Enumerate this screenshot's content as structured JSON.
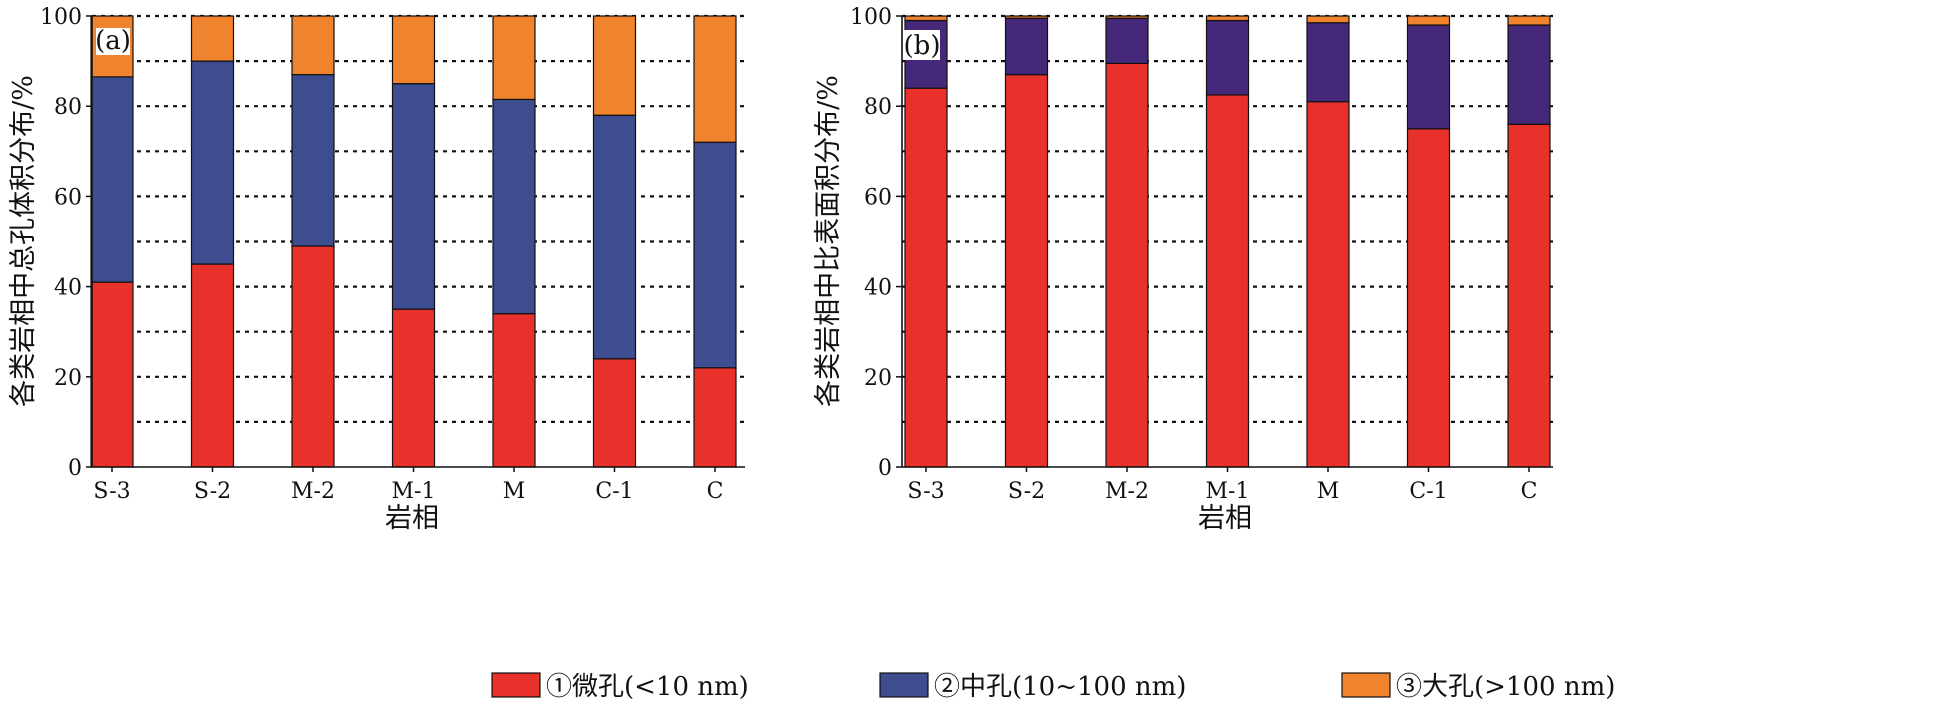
{
  "chart_data": [
    {
      "type": "bar",
      "stacked": true,
      "panel_label": "(a)",
      "categories": [
        "S-3",
        "S-2",
        "M-2",
        "M-1",
        "M",
        "C-1",
        "C"
      ],
      "series": [
        {
          "name": "①微孔(<10 nm)",
          "color": "#e8312b",
          "values": [
            41,
            45,
            49,
            35,
            34,
            24,
            22
          ]
        },
        {
          "name": "②中孔(10~100 nm)",
          "color": "#3d4d8f",
          "values": [
            45.5,
            45,
            38,
            50,
            47.5,
            54,
            50
          ]
        },
        {
          "name": "③大孔(>100 nm)",
          "color": "#f0832e",
          "values": [
            13.5,
            10,
            13,
            15,
            18.5,
            22,
            28
          ]
        }
      ],
      "xlabel": "岩相",
      "ylabel": "各类岩相中总孔体积分布/%",
      "yticks": [
        "0",
        "20",
        "40",
        "60",
        "80",
        "100"
      ],
      "ylim": [
        0,
        100
      ],
      "grid": "dotted horizontal every 10"
    },
    {
      "type": "bar",
      "stacked": true,
      "panel_label": "(b)",
      "categories": [
        "S-3",
        "S-2",
        "M-2",
        "M-1",
        "M",
        "C-1",
        "C"
      ],
      "series": [
        {
          "name": "①微孔(<10 nm)",
          "color": "#e8312b",
          "values": [
            84,
            87,
            89.5,
            82.5,
            81,
            75,
            76
          ]
        },
        {
          "name": "②中孔(10~100 nm)",
          "color": "#46287a",
          "values": [
            15,
            12.5,
            10,
            16.5,
            17.5,
            23,
            22
          ]
        },
        {
          "name": "③大孔(>100 nm)",
          "color": "#f0832e",
          "values": [
            1,
            0.5,
            0.5,
            1,
            1.5,
            2,
            2
          ]
        }
      ],
      "xlabel": "岩相",
      "ylabel": "各类岩相中比表面积分布/%",
      "yticks": [
        "0",
        "20",
        "40",
        "60",
        "80",
        "100"
      ],
      "ylim": [
        0,
        100
      ],
      "grid": "dotted horizontal every 10"
    }
  ],
  "legend": {
    "placement": "bottom",
    "items": [
      {
        "label": "①微孔(<10 nm)",
        "color": "#e8312b"
      },
      {
        "label": "②中孔(10~100 nm)",
        "color": "#3d4d8f"
      },
      {
        "label": "③大孔(>100 nm)",
        "color": "#f0832e"
      }
    ]
  }
}
